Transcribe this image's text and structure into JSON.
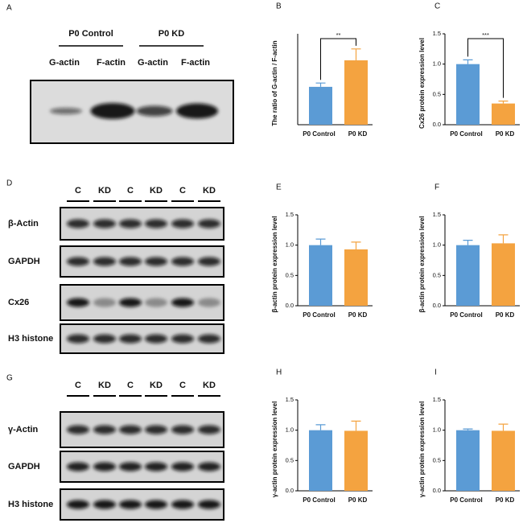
{
  "blots": [
    {
      "label": "A",
      "groups": [
        "P0 Control",
        "P0 KD"
      ],
      "lanes": [
        "G-actin",
        "F-actin",
        "G-actin",
        "F-actin"
      ]
    },
    {
      "label": "D",
      "lanes": [
        "C",
        "KD",
        "C",
        "KD",
        "C",
        "KD"
      ],
      "rows": [
        "β-Actin",
        "GAPDH",
        "Cx26",
        "H3 histone"
      ]
    },
    {
      "label": "G",
      "lanes": [
        "C",
        "KD",
        "C",
        "KD",
        "C",
        "KD"
      ],
      "rows": [
        "γ-Actin",
        "GAPDH",
        "H3 histone"
      ]
    }
  ],
  "chart_data": [
    {
      "type": "bar",
      "label": "B",
      "ylabel": "The ratio of G-actin / F-actin",
      "categories": [
        "P0 Control",
        "P0 KD"
      ],
      "values": [
        1.0,
        1.7
      ],
      "errors": [
        0.1,
        0.3
      ],
      "colors": [
        "#5b9bd5",
        "#f4a340"
      ],
      "ylim": [
        0,
        2.4
      ],
      "significance": "**"
    },
    {
      "type": "bar",
      "label": "C",
      "ylabel": "Cx26 protein expression level",
      "categories": [
        "P0 Control",
        "P0 KD"
      ],
      "values": [
        1.0,
        0.35
      ],
      "errors": [
        0.07,
        0.04
      ],
      "colors": [
        "#5b9bd5",
        "#f4a340"
      ],
      "ylim": [
        0,
        1.5
      ],
      "yticks": [
        {
          "value": 0,
          "label": "0.0"
        },
        0.5,
        {
          "value": 1,
          "label": "1.0"
        },
        1.5
      ],
      "significance": "***"
    },
    {
      "type": "bar",
      "label": "E",
      "ylabel": "β-actin protein expression level",
      "categories": [
        "P0 Control",
        "P0 KD"
      ],
      "values": [
        1.0,
        0.93
      ],
      "errors": [
        0.1,
        0.12
      ],
      "colors": [
        "#5b9bd5",
        "#f4a340"
      ],
      "ylim": [
        0,
        1.5
      ],
      "yticks": [
        {
          "value": 0,
          "label": "0.0"
        },
        0.5,
        {
          "value": 1,
          "label": "1.0"
        },
        1.5
      ]
    },
    {
      "type": "bar",
      "label": "F",
      "ylabel": "β-actin protein expression level",
      "categories": [
        "P0 Control",
        "P0 KD"
      ],
      "values": [
        1.0,
        1.03
      ],
      "errors": [
        0.08,
        0.14
      ],
      "colors": [
        "#5b9bd5",
        "#f4a340"
      ],
      "ylim": [
        0,
        1.5
      ],
      "yticks": [
        {
          "value": 0,
          "label": "0.0"
        },
        0.5,
        {
          "value": 1,
          "label": "1.0"
        },
        1.5
      ]
    },
    {
      "type": "bar",
      "label": "H",
      "ylabel": "γ-actin protein expression level",
      "categories": [
        "P0 Control",
        "P0 KD"
      ],
      "values": [
        1.0,
        0.99
      ],
      "errors": [
        0.09,
        0.16
      ],
      "colors": [
        "#5b9bd5",
        "#f4a340"
      ],
      "ylim": [
        0,
        1.5
      ],
      "yticks": [
        {
          "value": 0,
          "label": "0.0"
        },
        0.5,
        {
          "value": 1,
          "label": "1.0"
        },
        1.5
      ]
    },
    {
      "type": "bar",
      "label": "I",
      "ylabel": "γ-actin protein expression level",
      "categories": [
        "P0 Control",
        "P0 KD"
      ],
      "values": [
        1.0,
        0.99
      ],
      "errors": [
        0.02,
        0.11
      ],
      "colors": [
        "#5b9bd5",
        "#f4a340"
      ],
      "ylim": [
        0,
        1.5
      ],
      "yticks": [
        {
          "value": 0,
          "label": "0.0"
        },
        0.5,
        {
          "value": 1,
          "label": "1.0"
        },
        1.5
      ]
    }
  ]
}
